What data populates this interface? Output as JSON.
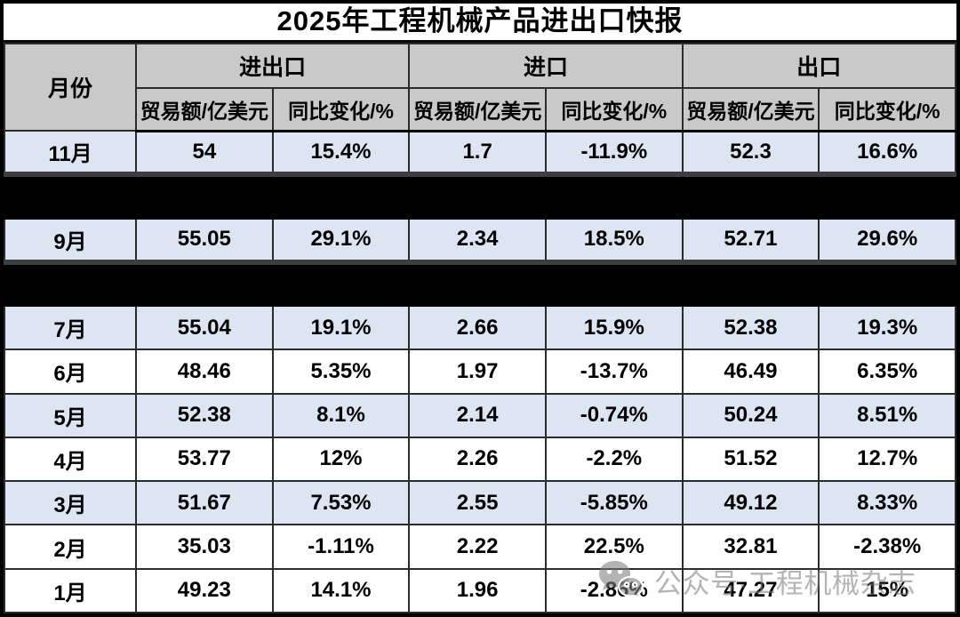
{
  "title": "2025年工程机械产品进出口快报",
  "table": {
    "corner_header": "月份",
    "groups": [
      "进出口",
      "进口",
      "出口"
    ],
    "sub_headers": [
      "贸易额/亿美元",
      "同比变化/%",
      "贸易额/亿美元",
      "同比变化/%",
      "贸易额/亿美元",
      "同比变化/%"
    ],
    "rows": [
      {
        "month": "11月",
        "values": [
          "54",
          "15.4%",
          "1.7",
          "-11.9%",
          "52.3",
          "16.6%"
        ],
        "shade": "blue",
        "censored": false
      },
      {
        "censored": true
      },
      {
        "month": "9月",
        "values": [
          "55.05",
          "29.1%",
          "2.34",
          "18.5%",
          "52.71",
          "29.6%"
        ],
        "shade": "blue",
        "censored": false
      },
      {
        "censored": true
      },
      {
        "month": "7月",
        "values": [
          "55.04",
          "19.1%",
          "2.66",
          "15.9%",
          "52.38",
          "19.3%"
        ],
        "shade": "blue",
        "censored": false
      },
      {
        "month": "6月",
        "values": [
          "48.46",
          "5.35%",
          "1.97",
          "-13.7%",
          "46.49",
          "6.35%"
        ],
        "shade": "white",
        "censored": false
      },
      {
        "month": "5月",
        "values": [
          "52.38",
          "8.1%",
          "2.14",
          "-0.74%",
          "50.24",
          "8.51%"
        ],
        "shade": "blue",
        "censored": false
      },
      {
        "month": "4月",
        "values": [
          "53.77",
          "12%",
          "2.26",
          "-2.2%",
          "51.52",
          "12.7%"
        ],
        "shade": "white",
        "censored": false
      },
      {
        "month": "3月",
        "values": [
          "51.67",
          "7.53%",
          "2.55",
          "-5.85%",
          "49.12",
          "8.33%"
        ],
        "shade": "blue",
        "censored": false
      },
      {
        "month": "2月",
        "values": [
          "35.03",
          "-1.11%",
          "2.22",
          "22.5%",
          "32.81",
          "-2.38%"
        ],
        "shade": "white",
        "censored": false
      },
      {
        "month": "1月",
        "values": [
          "49.23",
          "14.1%",
          "1.96",
          "-2.86%",
          "47.27",
          "15%"
        ],
        "shade": "white",
        "censored": false
      }
    ]
  },
  "watermark": {
    "icon": "wechat-icon",
    "text": "公众号·工程机械杂志"
  },
  "colors": {
    "header_bg": "#cac9ca",
    "row_blue": "#dce5f1",
    "row_white": "#ffffff",
    "border": "#2b2b2b",
    "heavy_border": "#000000",
    "censor_bar": "#000000",
    "censor_top_segment": "#3e3e3e",
    "watermark_gray": "#7d7d7d",
    "text": "#000000"
  }
}
